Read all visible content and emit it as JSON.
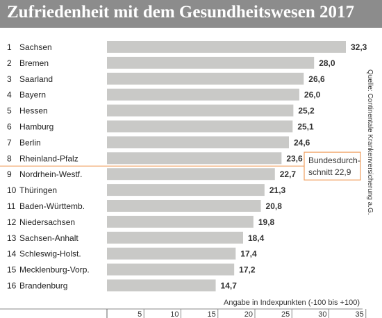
{
  "title": "Zufriedenheit mit dem Gesundheitswesen 2017",
  "source": "Quelle: Continentale Krankenversicherung a.G.",
  "chart_data": {
    "type": "bar",
    "orientation": "horizontal",
    "title": "Zufriedenheit mit dem Gesundheitswesen 2017",
    "xlabel": "Angabe in Indexpunkten (-100 bis +100)",
    "xlim": [
      0,
      35
    ],
    "xticks": [
      "5",
      "10",
      "15",
      "20",
      "25",
      "30",
      "35"
    ],
    "ranks": [
      "1",
      "2",
      "3",
      "4",
      "5",
      "6",
      "7",
      "8",
      "9",
      "10",
      "11",
      "12",
      "13",
      "14",
      "15",
      "16"
    ],
    "categories": [
      "Sachsen",
      "Bremen",
      "Saarland",
      "Bayern",
      "Hessen",
      "Hamburg",
      "Berlin",
      "Rheinland-Pfalz",
      "Nordrhein-Westf.",
      "Thüringen",
      "Baden-Württemb.",
      "Niedersachsen",
      "Sachsen-Anhalt",
      "Schleswig-Holst.",
      "Mecklenburg-Vorp.",
      "Brandenburg"
    ],
    "values": [
      32.3,
      28.0,
      26.6,
      26.0,
      25.2,
      25.1,
      24.6,
      23.6,
      22.7,
      21.3,
      20.8,
      19.8,
      18.4,
      17.4,
      17.2,
      14.7
    ],
    "value_labels": [
      "32,3",
      "28,0",
      "26,6",
      "26,0",
      "25,2",
      "25,1",
      "24,6",
      "23,6",
      "22,7",
      "21,3",
      "20,8",
      "19,8",
      "18,4",
      "17,4",
      "17,2",
      "14,7"
    ],
    "reference_line": {
      "value": 22.9,
      "label_line1": "Bundesdurch-",
      "label_line2": "schnitt 22,9"
    },
    "colors": {
      "bar": "#c9c9c7",
      "reference": "#f0a060",
      "title_bg": "#8c8c8c"
    }
  }
}
